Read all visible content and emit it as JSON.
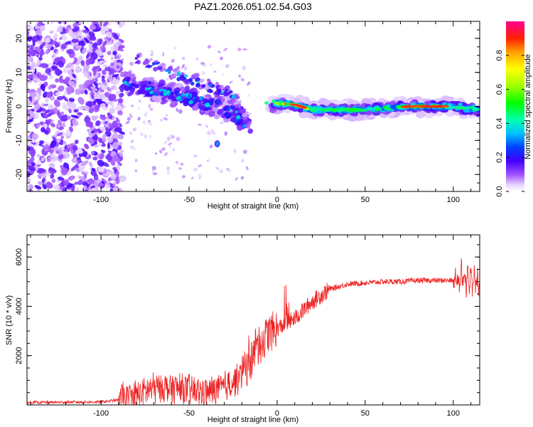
{
  "title": "PAZ1.2026.051.02.54.G03",
  "chart_data": [
    {
      "type": "heatmap",
      "xlabel": "Height of straight line (km)",
      "ylabel": "Frequency (Hz)",
      "xlim": [
        -142,
        115
      ],
      "ylim": [
        -25,
        25
      ],
      "xticks": [
        -100,
        -50,
        0,
        50,
        100
      ],
      "xtick_labels": [
        "-100",
        "-50",
        "0",
        "50",
        "100"
      ],
      "yticks": [
        -20,
        -10,
        0,
        10,
        20
      ],
      "ytick_labels": [
        "-20",
        "-10",
        "0",
        "10",
        "20"
      ],
      "colorbar": {
        "label": "Normalized spectral amplitude",
        "range": [
          0,
          1
        ],
        "ticks": [
          0.0,
          0.2,
          0.4,
          0.6,
          0.8
        ],
        "tick_labels": [
          "0.0",
          "0.2",
          "0.4",
          "0.6",
          "0.8"
        ]
      },
      "description_points": {
        "noise_region_x": [
          -142,
          -88
        ],
        "diagonal_track": [
          [
            -88,
            7
          ],
          [
            -70,
            5
          ],
          [
            -55,
            3
          ],
          [
            -40,
            1
          ],
          [
            -25,
            -2
          ],
          [
            -18,
            -5
          ]
        ],
        "upper_track": [
          [
            -80,
            14
          ],
          [
            -60,
            10
          ],
          [
            -45,
            7
          ],
          [
            -30,
            4
          ],
          [
            -22,
            2
          ]
        ],
        "strong_line": [
          [
            -2,
            1
          ],
          [
            10,
            0.5
          ],
          [
            20,
            -1
          ],
          [
            50,
            -1
          ],
          [
            75,
            0
          ],
          [
            95,
            0
          ],
          [
            115,
            -1
          ]
        ]
      }
    },
    {
      "type": "line",
      "xlabel": "Height of straight line (km)",
      "ylabel": "SNR (10 * v/v)",
      "xlim": [
        -142,
        115
      ],
      "ylim": [
        0,
        6900
      ],
      "xticks": [
        -100,
        -50,
        0,
        50,
        100
      ],
      "xtick_labels": [
        "-100",
        "-50",
        "0",
        "50",
        "100"
      ],
      "yticks": [
        2000,
        4000,
        6000
      ],
      "ytick_labels": [
        "2000",
        "4000",
        "6000"
      ],
      "series": [
        {
          "name": "SNR",
          "color": "#ee2222",
          "trend_x": [
            -142,
            -100,
            -90,
            -80,
            -70,
            -60,
            -50,
            -40,
            -30,
            -20,
            -15,
            -10,
            -5,
            0,
            10,
            20,
            30,
            40,
            50,
            60,
            70,
            80,
            90,
            100,
            105,
            110,
            115
          ],
          "trend_y": [
            100,
            120,
            200,
            400,
            700,
            700,
            600,
            500,
            700,
            1200,
            1800,
            2400,
            2900,
            3100,
            3500,
            4200,
            4700,
            4900,
            4950,
            5000,
            5000,
            5050,
            5050,
            5050,
            5100,
            5050,
            5000
          ]
        }
      ]
    }
  ]
}
